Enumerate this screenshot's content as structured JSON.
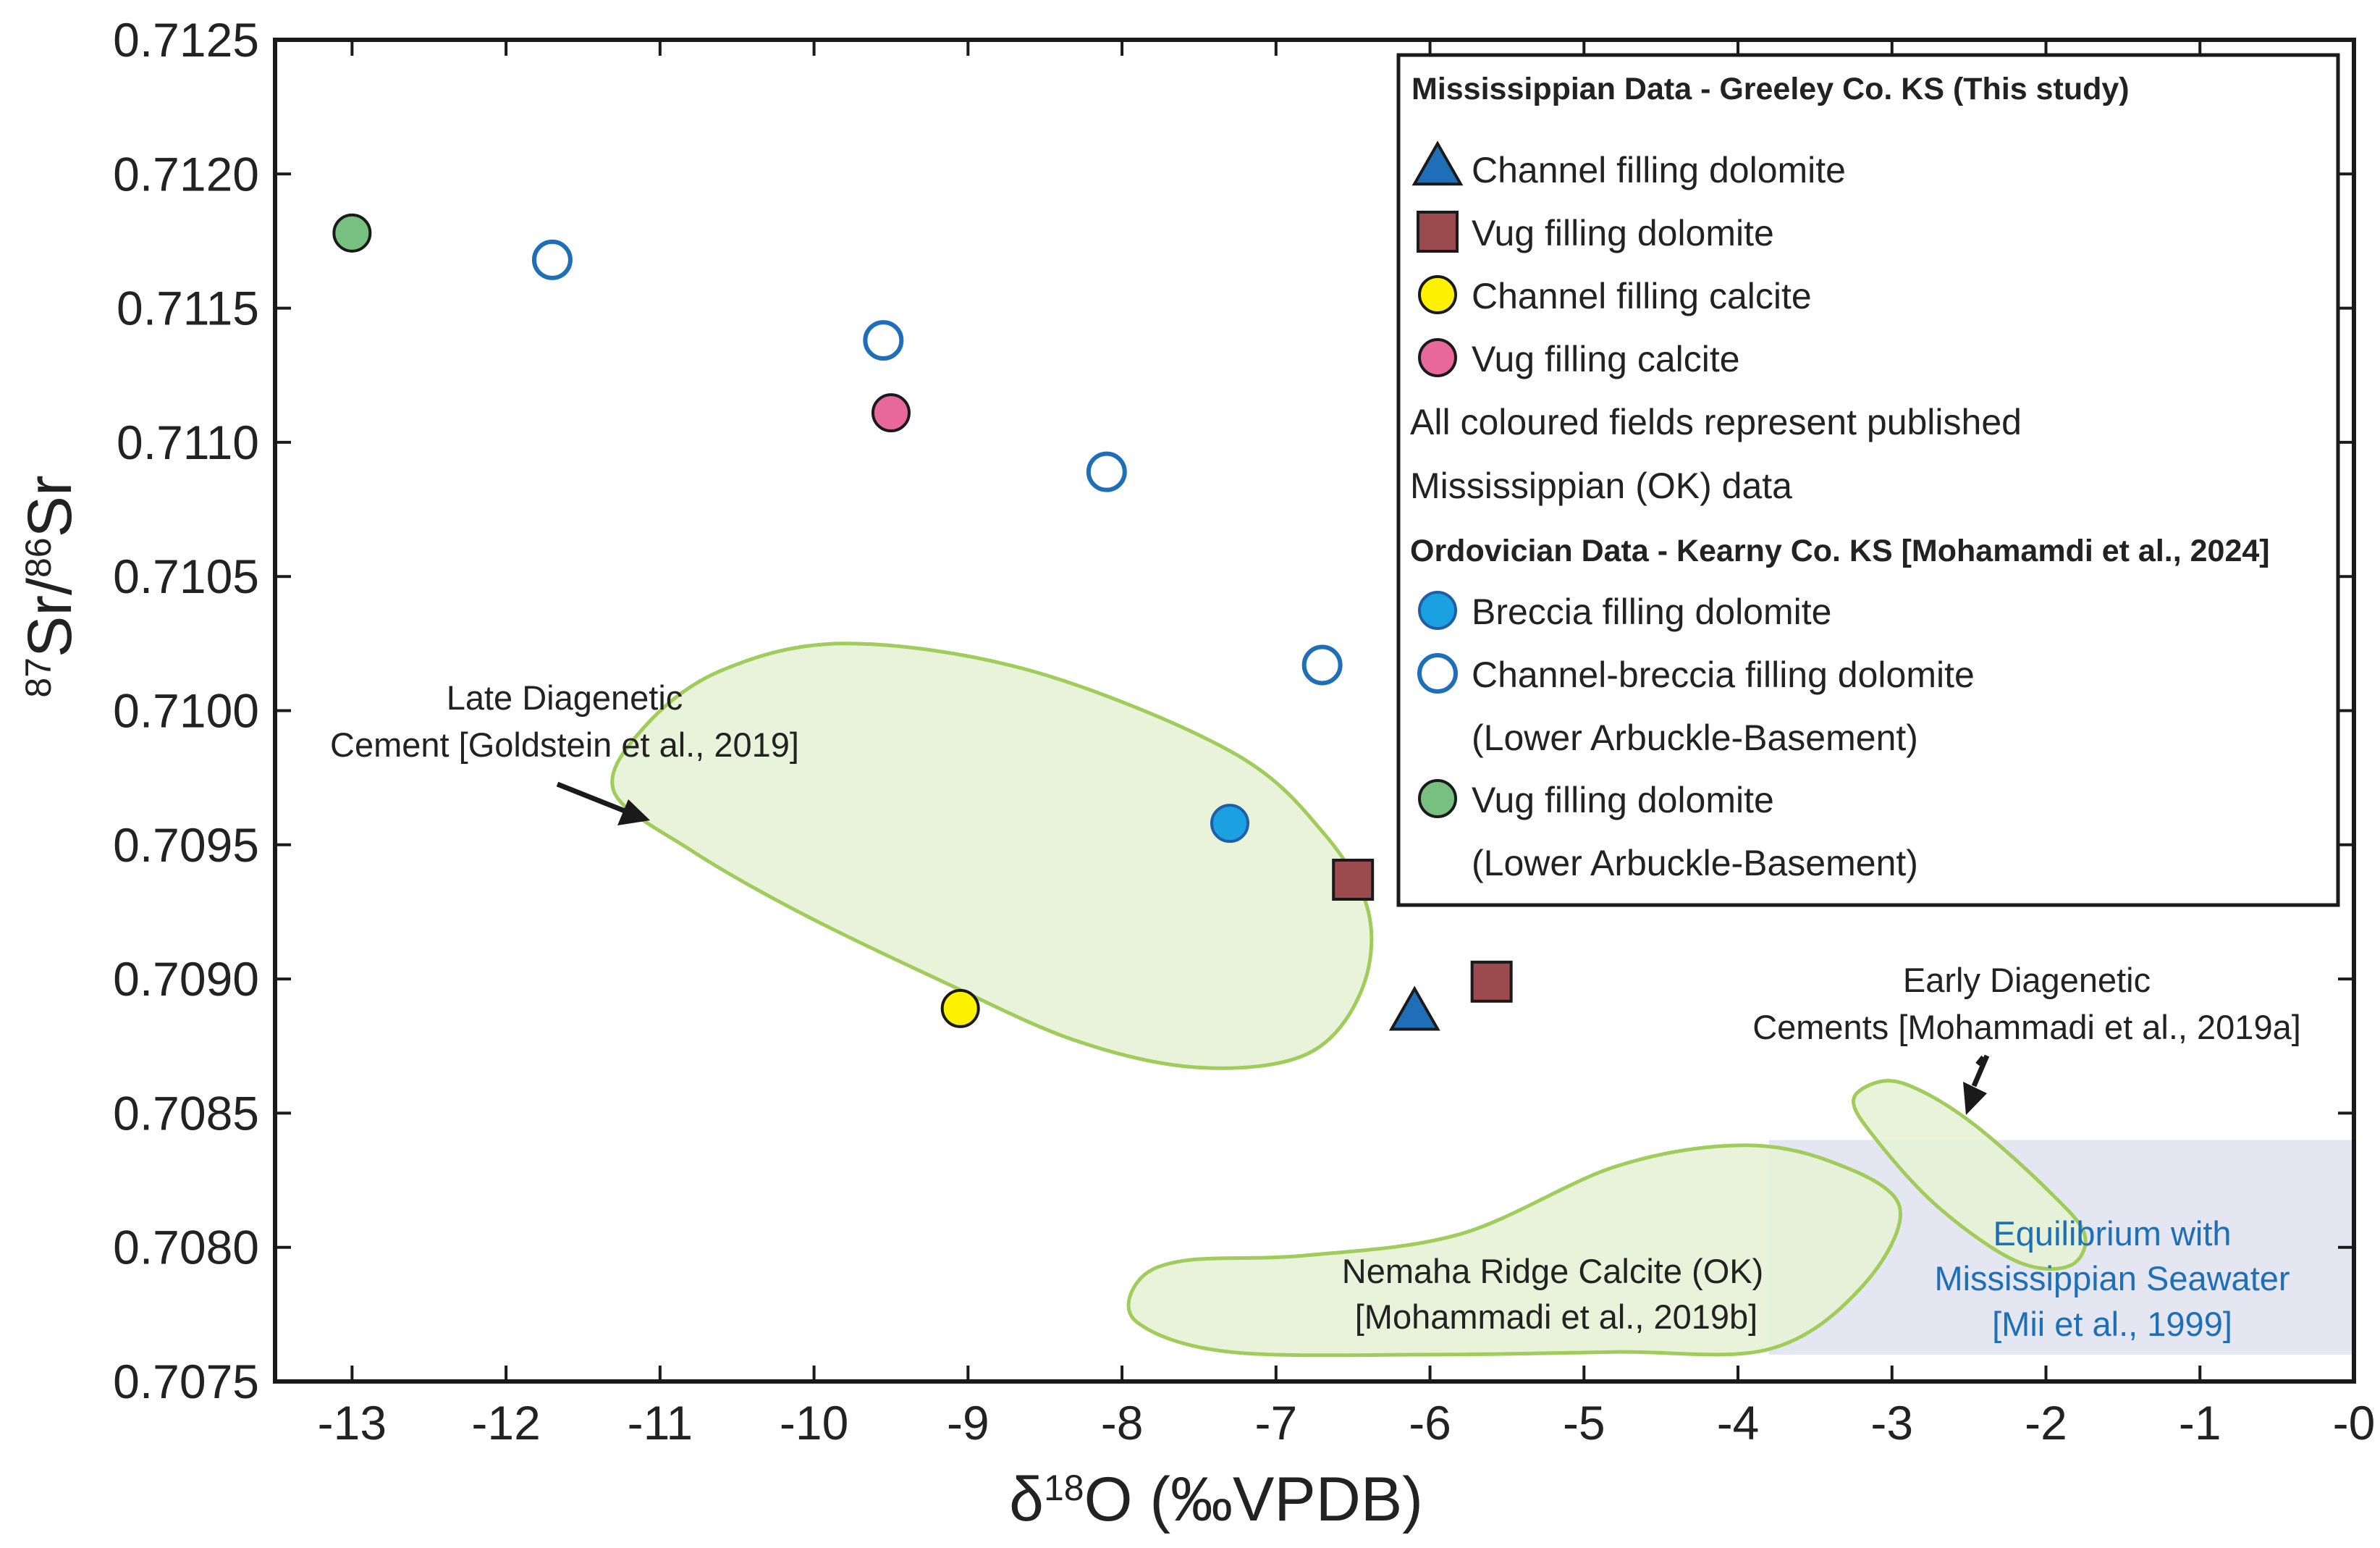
{
  "chart_data": {
    "type": "scatter",
    "xlabel": {
      "prefix": "δ",
      "sup": "18",
      "main": "O (‰VPDB)"
    },
    "ylabel": {
      "sup1": "87",
      "main1": "Sr/",
      "sup2": "86",
      "main2": "Sr"
    },
    "xlim": [
      -13.5,
      0
    ],
    "ylim": [
      0.7075,
      0.7125
    ],
    "xticks": [
      {
        "v": -13,
        "label": "-13"
      },
      {
        "v": -12,
        "label": "-12"
      },
      {
        "v": -11,
        "label": "-11"
      },
      {
        "v": -10,
        "label": "-10"
      },
      {
        "v": -9,
        "label": "-9"
      },
      {
        "v": -8,
        "label": "-8"
      },
      {
        "v": -7,
        "label": "-7"
      },
      {
        "v": -6,
        "label": "-6"
      },
      {
        "v": -5,
        "label": "-5"
      },
      {
        "v": -4,
        "label": "-4"
      },
      {
        "v": -3,
        "label": "-3"
      },
      {
        "v": -2,
        "label": "-2"
      },
      {
        "v": -1,
        "label": "-1"
      },
      {
        "v": 0,
        "label": "-0"
      }
    ],
    "yticks": [
      {
        "v": 0.7075,
        "label": "0.7075"
      },
      {
        "v": 0.708,
        "label": "0.7080"
      },
      {
        "v": 0.7085,
        "label": "0.7085"
      },
      {
        "v": 0.709,
        "label": "0.7090"
      },
      {
        "v": 0.7095,
        "label": "0.7095"
      },
      {
        "v": 0.71,
        "label": "0.7100"
      },
      {
        "v": 0.7105,
        "label": "0.7105"
      },
      {
        "v": 0.711,
        "label": "0.7110"
      },
      {
        "v": 0.7115,
        "label": "0.7115"
      },
      {
        "v": 0.712,
        "label": "0.7120"
      },
      {
        "v": 0.7125,
        "label": "0.7125"
      }
    ],
    "series": [
      {
        "name": "Channel filling dolomite",
        "marker": "triangle",
        "fill": "#1f6fb8",
        "stroke": "#1a1a1a",
        "points": [
          {
            "x": -6.1,
            "y": 0.70887
          }
        ]
      },
      {
        "name": "Vug filling dolomite",
        "marker": "square",
        "fill": "#9b4a4e",
        "stroke": "#1a1a1a",
        "points": [
          {
            "x": -6.5,
            "y": 0.70937
          },
          {
            "x": -5.6,
            "y": 0.70899
          }
        ]
      },
      {
        "name": "Channel filling calcite",
        "marker": "circle",
        "fill": "#fff200",
        "stroke": "#1a1a1a",
        "points": [
          {
            "x": -9.05,
            "y": 0.70889
          }
        ]
      },
      {
        "name": "Vug filling calcite",
        "marker": "circle",
        "fill": "#e8689c",
        "stroke": "#1a1a1a",
        "points": [
          {
            "x": -9.5,
            "y": 0.71111
          }
        ]
      },
      {
        "name": "Breccia filling dolomite",
        "marker": "circle",
        "fill": "#1ba1e2",
        "stroke": "#1f5fa8",
        "points": [
          {
            "x": -7.3,
            "y": 0.70958
          }
        ]
      },
      {
        "name": "Channel-breccia filling dolomite",
        "marker": "circle-open",
        "fill": "#ffffff",
        "stroke": "#1f6fb8",
        "points": [
          {
            "x": -11.7,
            "y": 0.71168
          },
          {
            "x": -9.55,
            "y": 0.71138
          },
          {
            "x": -8.1,
            "y": 0.71089
          },
          {
            "x": -6.7,
            "y": 0.71017
          }
        ]
      },
      {
        "name": "Vug filling dolomite (Lower Arbuckle-Basement)",
        "marker": "circle",
        "fill": "#77c07f",
        "stroke": "#1a1a1a",
        "points": [
          {
            "x": -13.0,
            "y": 0.71178
          }
        ]
      }
    ],
    "fields": [
      {
        "name": "late-diagenetic",
        "fill": "#e6f2d6",
        "stroke": "#9fcc5a",
        "points": [
          [
            -11.3,
            0.7097
          ],
          [
            -11.1,
            0.70994
          ],
          [
            -10.6,
            0.71015
          ],
          [
            -9.8,
            0.71025
          ],
          [
            -8.6,
            0.71015
          ],
          [
            -7.3,
            0.70985
          ],
          [
            -6.7,
            0.70955
          ],
          [
            -6.4,
            0.70925
          ],
          [
            -6.45,
            0.70895
          ],
          [
            -6.8,
            0.70872
          ],
          [
            -7.5,
            0.70867
          ],
          [
            -8.3,
            0.70877
          ],
          [
            -9.2,
            0.709
          ],
          [
            -10.1,
            0.70925
          ],
          [
            -10.8,
            0.70948
          ]
        ]
      },
      {
        "name": "early-diagenetic",
        "fill": "#e6f2d6",
        "stroke": "#9fcc5a",
        "points": [
          [
            -3.05,
            0.70862
          ],
          [
            -2.8,
            0.70858
          ],
          [
            -2.45,
            0.70845
          ],
          [
            -2.0,
            0.70822
          ],
          [
            -1.75,
            0.70805
          ],
          [
            -1.85,
            0.70793
          ],
          [
            -2.2,
            0.70795
          ],
          [
            -2.7,
            0.70815
          ],
          [
            -3.1,
            0.7084
          ],
          [
            -3.25,
            0.70855
          ]
        ]
      },
      {
        "name": "nemaha-ridge",
        "fill": "#e6f2d6",
        "stroke": "#9fcc5a",
        "points": [
          [
            -7.9,
            0.70787
          ],
          [
            -7.6,
            0.70795
          ],
          [
            -6.8,
            0.70797
          ],
          [
            -5.8,
            0.70805
          ],
          [
            -4.8,
            0.7083
          ],
          [
            -4.0,
            0.70838
          ],
          [
            -3.4,
            0.70832
          ],
          [
            -2.95,
            0.70815
          ],
          [
            -3.2,
            0.70785
          ],
          [
            -3.8,
            0.70762
          ],
          [
            -4.8,
            0.70761
          ],
          [
            -6.0,
            0.7076
          ],
          [
            -7.3,
            0.70761
          ],
          [
            -7.9,
            0.70772
          ]
        ]
      }
    ],
    "seawater_band": {
      "x0": -3.8,
      "x1": 0,
      "y0": 0.7076,
      "y1": 0.7084,
      "fill": "#e4e6f2"
    },
    "annotations": {
      "late_diagenetic": [
        "Late Diagenetic",
        "Cement [Goldstein et al., 2019]"
      ],
      "early_diagenetic": [
        "Early Diagenetic",
        "Cements [Mohammadi et al., 2019a]"
      ],
      "nemaha": [
        "Nemaha Ridge Calcite (OK)",
        "[Mohammadi et al., 2019b]"
      ],
      "seawater": [
        "Equilibrium with",
        "Mississippian Seawater",
        "[Mii et al., 1999]"
      ],
      "seawater_color": "#1f6fb8"
    },
    "legend": {
      "placement": "top-right",
      "heading1": "Mississippian Data - Greeley Co. KS (This study)",
      "items1": [
        {
          "label": "Channel filling dolomite",
          "marker": "triangle",
          "fill": "#1f6fb8",
          "stroke": "#1a1a1a"
        },
        {
          "label": "Vug filling dolomite",
          "marker": "square",
          "fill": "#9b4a4e",
          "stroke": "#1a1a1a"
        },
        {
          "label": "Channel filling calcite",
          "marker": "circle",
          "fill": "#fff200",
          "stroke": "#1a1a1a"
        },
        {
          "label": "Vug filling calcite",
          "marker": "circle",
          "fill": "#e8689c",
          "stroke": "#1a1a1a"
        }
      ],
      "note": [
        "All coloured fields represent published",
        "Mississippian (OK) data"
      ],
      "heading2": "Ordovician Data - Kearny Co. KS [Mohamamdi et al., 2024]",
      "items2": [
        {
          "label": "Breccia filling dolomite",
          "sub": "",
          "marker": "circle",
          "fill": "#1ba1e2",
          "stroke": "#1f5fa8"
        },
        {
          "label": "Channel-breccia filling dolomite",
          "sub": "(Lower Arbuckle-Basement)",
          "marker": "circle-open",
          "fill": "#ffffff",
          "stroke": "#1f6fb8"
        },
        {
          "label": "Vug filling dolomite",
          "sub": "(Lower Arbuckle-Basement)",
          "marker": "circle",
          "fill": "#77c07f",
          "stroke": "#1a1a1a"
        }
      ]
    }
  }
}
